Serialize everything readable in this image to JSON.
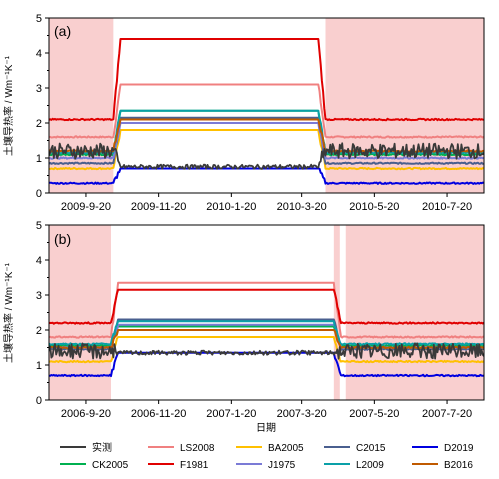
{
  "chart_data": [
    {
      "type": "line",
      "panel_label": "(a)",
      "ylabel": "土壤导热率 / Wm⁻¹K⁻¹",
      "ylim": [
        0,
        5
      ],
      "yticks": [
        "0",
        "1",
        "2",
        "3",
        "4",
        "5"
      ],
      "x_start": "2009-08-20",
      "x_end": "2010-08-20",
      "xtick_dates": [
        "2009-09-20",
        "2009-11-20",
        "2010-01-20",
        "2010-03-20",
        "2010-05-20",
        "2010-07-20"
      ],
      "xtick_labels": [
        "2009-9-20",
        "2009-11-20",
        "2010-1-20",
        "2010-3-20",
        "2010-5-20",
        "2010-7-20"
      ],
      "shaded_periods": [
        [
          "2009-08-20",
          "2009-10-13"
        ],
        [
          "2010-04-09",
          "2010-08-20"
        ]
      ],
      "freeze_period": [
        "2009-10-13",
        "2010-04-09"
      ],
      "series": [
        {
          "name": "实测",
          "unfrozen": 1.2,
          "frozen": 0.75,
          "variability": "high"
        },
        {
          "name": "LS2008",
          "unfrozen": 1.6,
          "frozen": 3.1
        },
        {
          "name": "BA2005",
          "unfrozen": 0.7,
          "frozen": 1.8
        },
        {
          "name": "C2015",
          "unfrozen": 0.85,
          "frozen": 2.15
        },
        {
          "name": "D2019",
          "unfrozen": 0.28,
          "frozen": 0.7
        },
        {
          "name": "CK2005",
          "unfrozen": 1.1,
          "frozen": 2.35
        },
        {
          "name": "F1981",
          "unfrozen": 2.1,
          "frozen": 4.4
        },
        {
          "name": "J1975",
          "unfrozen": 1.0,
          "frozen": 2.0
        },
        {
          "name": "L2009",
          "unfrozen": 1.15,
          "frozen": 2.35
        },
        {
          "name": "B2016",
          "unfrozen": 1.2,
          "frozen": 2.1
        }
      ]
    },
    {
      "type": "line",
      "panel_label": "(b)",
      "ylabel": "土壤导热率 / Wm⁻¹K⁻¹",
      "xlabel": "日期",
      "ylim": [
        0,
        5
      ],
      "yticks": [
        "0",
        "1",
        "2",
        "3",
        "4",
        "5"
      ],
      "x_start": "2006-08-20",
      "x_end": "2007-08-20",
      "xtick_dates": [
        "2006-09-20",
        "2006-11-20",
        "2007-01-20",
        "2007-03-20",
        "2007-05-20",
        "2007-07-20"
      ],
      "xtick_labels": [
        "2006-9-20",
        "2006-11-20",
        "2007-1-20",
        "2007-3-20",
        "2007-5-20",
        "2007-7-20"
      ],
      "shaded_periods": [
        [
          "2006-08-20",
          "2006-10-11"
        ],
        [
          "2007-04-16",
          "2007-04-21"
        ],
        [
          "2007-04-26",
          "2007-08-20"
        ]
      ],
      "freeze_period": [
        "2006-10-11",
        "2007-04-22"
      ],
      "series": [
        {
          "name": "实测",
          "unfrozen": 1.4,
          "frozen": 1.35,
          "variability": "high"
        },
        {
          "name": "LS2008",
          "unfrozen": 1.8,
          "frozen": 3.35
        },
        {
          "name": "BA2005",
          "unfrozen": 1.1,
          "frozen": 1.8
        },
        {
          "name": "C2015",
          "unfrozen": 1.45,
          "frozen": 2.3
        },
        {
          "name": "D2019",
          "unfrozen": 0.7,
          "frozen": 1.35
        },
        {
          "name": "CK2005",
          "unfrozen": 1.55,
          "frozen": 2.1
        },
        {
          "name": "F1981",
          "unfrozen": 2.2,
          "frozen": 3.15
        },
        {
          "name": "J1975",
          "unfrozen": 1.5,
          "frozen": 2.15
        },
        {
          "name": "L2009",
          "unfrozen": 1.6,
          "frozen": 2.25
        },
        {
          "name": "B2016",
          "unfrozen": 1.5,
          "frozen": 2.0
        }
      ]
    }
  ],
  "legend": [
    {
      "name": "实测",
      "color": "#3a3a3a"
    },
    {
      "name": "LS2008",
      "color": "#f08080"
    },
    {
      "name": "BA2005",
      "color": "#ffc000"
    },
    {
      "name": "C2015",
      "color": "#4a5f8f"
    },
    {
      "name": "D2019",
      "color": "#0000e0"
    },
    {
      "name": "CK2005",
      "color": "#00b050"
    },
    {
      "name": "F1981",
      "color": "#e00000"
    },
    {
      "name": "J1975",
      "color": "#7b7bd6"
    },
    {
      "name": "L2009",
      "color": "#0aa0a8"
    },
    {
      "name": "B2016",
      "color": "#c05a00"
    }
  ],
  "shade_color": "#f9cfcf"
}
